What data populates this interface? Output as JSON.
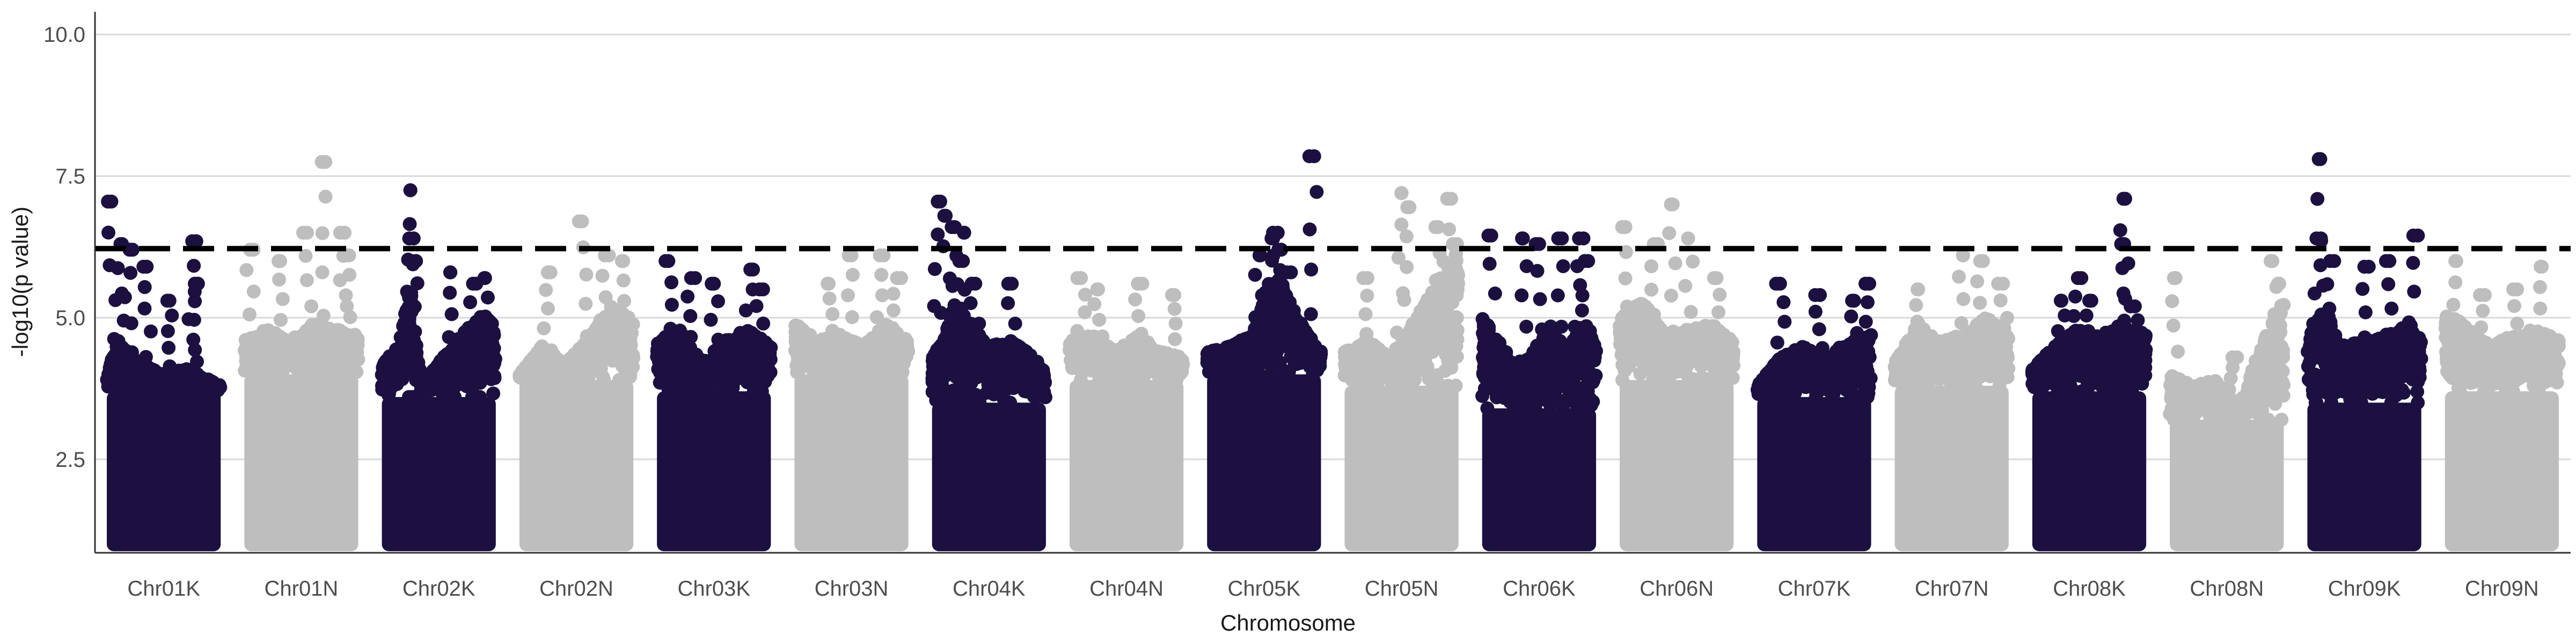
{
  "chart_data": {
    "type": "scatter",
    "title": "",
    "xlabel": "Chromosome",
    "ylabel": "-log10(p value)",
    "ylim": [
      0.85,
      10.4
    ],
    "yticks": [
      2.5,
      5.0,
      7.5,
      10.0
    ],
    "ytick_labels": [
      "2.5",
      "5.0",
      "7.5",
      "10.0"
    ],
    "grid": "horizontal major lines",
    "legend": "none",
    "threshold": {
      "value": 6.22,
      "style": "dashed",
      "color": "#000000"
    },
    "colors": {
      "odd": "#1c1040",
      "even": "#bebebe",
      "grid": "#d9d9d9",
      "axis": "#333333",
      "text": "#4d4d4d"
    },
    "point_floor": 1.0,
    "categories": [
      "Chr01K",
      "Chr01N",
      "Chr02K",
      "Chr02N",
      "Chr03K",
      "Chr03N",
      "Chr04K",
      "Chr04N",
      "Chr05K",
      "Chr05N",
      "Chr06K",
      "Chr06N",
      "Chr07K",
      "Chr07N",
      "Chr08K",
      "Chr08N",
      "Chr09K",
      "Chr09N"
    ],
    "series": [
      {
        "name": "Chr01K",
        "body_top": 3.7,
        "profile": [
          [
            0.0,
            4.0
          ],
          [
            0.1,
            4.6
          ],
          [
            0.3,
            4.2
          ],
          [
            0.5,
            4.0
          ],
          [
            0.7,
            4.1
          ],
          [
            0.9,
            3.9
          ],
          [
            1.0,
            3.8
          ]
        ],
        "peaks": [
          [
            0.04,
            7.05
          ],
          [
            0.12,
            6.3
          ],
          [
            0.2,
            6.2
          ],
          [
            0.35,
            5.9
          ],
          [
            0.75,
            6.35
          ],
          [
            0.8,
            5.6
          ],
          [
            0.55,
            5.3
          ]
        ]
      },
      {
        "name": "Chr01N",
        "body_top": 4.0,
        "profile": [
          [
            0.0,
            4.6
          ],
          [
            0.2,
            4.8
          ],
          [
            0.4,
            4.6
          ],
          [
            0.6,
            4.9
          ],
          [
            0.8,
            4.8
          ],
          [
            1.0,
            4.7
          ]
        ],
        "peaks": [
          [
            0.05,
            6.2
          ],
          [
            0.3,
            6.0
          ],
          [
            0.55,
            6.5
          ],
          [
            0.68,
            7.75
          ],
          [
            0.88,
            6.5
          ],
          [
            0.92,
            6.1
          ]
        ]
      },
      {
        "name": "Chr02K",
        "body_top": 3.6,
        "profile": [
          [
            0.0,
            4.2
          ],
          [
            0.15,
            4.5
          ],
          [
            0.25,
            5.6
          ],
          [
            0.35,
            3.8
          ],
          [
            0.5,
            4.2
          ],
          [
            0.7,
            4.7
          ],
          [
            0.9,
            5.1
          ],
          [
            1.0,
            4.8
          ]
        ],
        "peaks": [
          [
            0.25,
            7.25
          ],
          [
            0.24,
            6.4
          ],
          [
            0.3,
            6.0
          ],
          [
            0.6,
            5.8
          ],
          [
            0.8,
            5.6
          ],
          [
            0.9,
            5.7
          ]
        ]
      },
      {
        "name": "Chr02N",
        "body_top": 3.9,
        "profile": [
          [
            0.0,
            4.0
          ],
          [
            0.2,
            4.5
          ],
          [
            0.4,
            4.2
          ],
          [
            0.6,
            4.6
          ],
          [
            0.8,
            5.2
          ],
          [
            1.0,
            5.0
          ]
        ],
        "peaks": [
          [
            0.25,
            5.8
          ],
          [
            0.55,
            6.7
          ],
          [
            0.75,
            6.1
          ],
          [
            0.9,
            6.0
          ]
        ]
      },
      {
        "name": "Chr03K",
        "body_top": 3.7,
        "profile": [
          [
            0.0,
            4.6
          ],
          [
            0.2,
            4.8
          ],
          [
            0.4,
            4.2
          ],
          [
            0.6,
            4.6
          ],
          [
            0.8,
            4.8
          ],
          [
            1.0,
            4.5
          ]
        ],
        "peaks": [
          [
            0.1,
            6.0
          ],
          [
            0.3,
            5.7
          ],
          [
            0.5,
            5.6
          ],
          [
            0.82,
            5.85
          ],
          [
            0.9,
            5.5
          ]
        ]
      },
      {
        "name": "Chr03N",
        "body_top": 4.0,
        "profile": [
          [
            0.0,
            4.9
          ],
          [
            0.2,
            4.6
          ],
          [
            0.4,
            4.7
          ],
          [
            0.6,
            4.5
          ],
          [
            0.8,
            4.9
          ],
          [
            1.0,
            4.6
          ]
        ],
        "peaks": [
          [
            0.3,
            5.6
          ],
          [
            0.5,
            6.1
          ],
          [
            0.75,
            6.1
          ],
          [
            0.9,
            5.7
          ]
        ]
      },
      {
        "name": "Chr04K",
        "body_top": 3.5,
        "profile": [
          [
            0.0,
            4.3
          ],
          [
            0.1,
            4.6
          ],
          [
            0.2,
            5.3
          ],
          [
            0.3,
            5.0
          ],
          [
            0.5,
            4.5
          ],
          [
            0.7,
            4.6
          ],
          [
            0.9,
            4.3
          ],
          [
            1.0,
            4.0
          ]
        ],
        "peaks": [
          [
            0.05,
            7.05
          ],
          [
            0.12,
            6.8
          ],
          [
            0.2,
            6.6
          ],
          [
            0.28,
            6.5
          ],
          [
            0.24,
            6.0
          ],
          [
            0.38,
            5.6
          ],
          [
            0.7,
            5.6
          ]
        ]
      },
      {
        "name": "Chr04N",
        "body_top": 3.9,
        "profile": [
          [
            0.0,
            4.6
          ],
          [
            0.2,
            4.7
          ],
          [
            0.4,
            4.4
          ],
          [
            0.6,
            4.7
          ],
          [
            0.8,
            4.4
          ],
          [
            1.0,
            4.3
          ]
        ],
        "peaks": [
          [
            0.1,
            5.7
          ],
          [
            0.25,
            5.5
          ],
          [
            0.6,
            5.6
          ],
          [
            0.9,
            5.4
          ]
        ]
      },
      {
        "name": "Chr05K",
        "body_top": 4.0,
        "profile": [
          [
            0.0,
            4.4
          ],
          [
            0.2,
            4.5
          ],
          [
            0.4,
            4.7
          ],
          [
            0.5,
            5.4
          ],
          [
            0.6,
            5.9
          ],
          [
            0.7,
            5.4
          ],
          [
            0.85,
            4.8
          ],
          [
            1.0,
            4.4
          ]
        ],
        "peaks": [
          [
            0.58,
            6.4
          ],
          [
            0.62,
            6.5
          ],
          [
            0.65,
            6.2
          ],
          [
            0.46,
            6.1
          ],
          [
            0.94,
            7.85
          ],
          [
            0.7,
            5.8
          ]
        ]
      },
      {
        "name": "Chr05N",
        "body_top": 3.8,
        "profile": [
          [
            0.0,
            4.4
          ],
          [
            0.2,
            4.6
          ],
          [
            0.4,
            4.3
          ],
          [
            0.6,
            4.9
          ],
          [
            0.8,
            5.6
          ],
          [
            1.0,
            6.2
          ]
        ],
        "peaks": [
          [
            0.2,
            5.7
          ],
          [
            0.5,
            7.2
          ],
          [
            0.55,
            6.95
          ],
          [
            0.82,
            6.6
          ],
          [
            0.9,
            7.1
          ],
          [
            0.95,
            6.3
          ]
        ]
      },
      {
        "name": "Chr06K",
        "body_top": 3.4,
        "profile": [
          [
            0.0,
            5.0
          ],
          [
            0.15,
            4.6
          ],
          [
            0.3,
            4.1
          ],
          [
            0.45,
            4.4
          ],
          [
            0.6,
            4.9
          ],
          [
            0.75,
            4.4
          ],
          [
            0.9,
            5.0
          ],
          [
            1.0,
            4.5
          ]
        ],
        "peaks": [
          [
            0.08,
            6.45
          ],
          [
            0.35,
            6.4
          ],
          [
            0.5,
            6.3
          ],
          [
            0.7,
            6.4
          ],
          [
            0.85,
            6.4
          ],
          [
            0.9,
            6.0
          ]
        ]
      },
      {
        "name": "Chr06N",
        "body_top": 3.9,
        "profile": [
          [
            0.0,
            5.0
          ],
          [
            0.2,
            5.3
          ],
          [
            0.4,
            4.7
          ],
          [
            0.6,
            4.8
          ],
          [
            0.8,
            4.9
          ],
          [
            1.0,
            4.6
          ]
        ],
        "peaks": [
          [
            0.05,
            6.6
          ],
          [
            0.3,
            6.3
          ],
          [
            0.45,
            7.0
          ],
          [
            0.6,
            6.4
          ],
          [
            0.85,
            5.7
          ]
        ]
      },
      {
        "name": "Chr07K",
        "body_top": 3.6,
        "profile": [
          [
            0.0,
            3.8
          ],
          [
            0.2,
            4.3
          ],
          [
            0.4,
            4.5
          ],
          [
            0.6,
            4.3
          ],
          [
            0.8,
            4.6
          ],
          [
            1.0,
            4.7
          ]
        ],
        "peaks": [
          [
            0.2,
            5.6
          ],
          [
            0.55,
            5.4
          ],
          [
            0.85,
            5.3
          ],
          [
            0.95,
            5.6
          ]
        ]
      },
      {
        "name": "Chr07N",
        "body_top": 3.8,
        "profile": [
          [
            0.0,
            4.2
          ],
          [
            0.2,
            4.9
          ],
          [
            0.4,
            4.6
          ],
          [
            0.6,
            4.7
          ],
          [
            0.8,
            5.0
          ],
          [
            1.0,
            4.8
          ]
        ],
        "peaks": [
          [
            0.2,
            5.5
          ],
          [
            0.6,
            6.1
          ],
          [
            0.75,
            6.0
          ],
          [
            0.95,
            5.6
          ]
        ]
      },
      {
        "name": "Chr08K",
        "body_top": 3.7,
        "profile": [
          [
            0.0,
            4.1
          ],
          [
            0.2,
            4.5
          ],
          [
            0.4,
            4.8
          ],
          [
            0.6,
            4.7
          ],
          [
            0.8,
            4.9
          ],
          [
            1.0,
            4.7
          ]
        ],
        "peaks": [
          [
            0.25,
            5.3
          ],
          [
            0.4,
            5.7
          ],
          [
            0.5,
            5.3
          ],
          [
            0.78,
            6.3
          ],
          [
            0.8,
            7.1
          ],
          [
            0.9,
            5.2
          ]
        ]
      },
      {
        "name": "Chr08N",
        "body_top": 3.2,
        "profile": [
          [
            0.0,
            4.0
          ],
          [
            0.2,
            3.8
          ],
          [
            0.4,
            3.9
          ],
          [
            0.6,
            3.4
          ],
          [
            0.8,
            4.5
          ],
          [
            1.0,
            5.3
          ]
        ],
        "peaks": [
          [
            0.05,
            5.7
          ],
          [
            0.55,
            4.3
          ],
          [
            0.9,
            6.0
          ],
          [
            0.95,
            5.6
          ]
        ]
      },
      {
        "name": "Chr09K",
        "body_top": 3.5,
        "profile": [
          [
            0.0,
            4.6
          ],
          [
            0.15,
            5.2
          ],
          [
            0.3,
            4.5
          ],
          [
            0.5,
            4.6
          ],
          [
            0.7,
            4.7
          ],
          [
            0.9,
            4.9
          ],
          [
            1.0,
            4.6
          ]
        ],
        "peaks": [
          [
            0.08,
            6.4
          ],
          [
            0.1,
            7.8
          ],
          [
            0.2,
            6.0
          ],
          [
            0.5,
            5.9
          ],
          [
            0.72,
            6.0
          ],
          [
            0.93,
            6.45
          ]
        ]
      },
      {
        "name": "Chr09N",
        "body_top": 3.7,
        "profile": [
          [
            0.0,
            5.2
          ],
          [
            0.2,
            4.8
          ],
          [
            0.4,
            4.5
          ],
          [
            0.6,
            4.7
          ],
          [
            0.8,
            4.8
          ],
          [
            1.0,
            4.6
          ]
        ],
        "peaks": [
          [
            0.1,
            6.0
          ],
          [
            0.35,
            5.4
          ],
          [
            0.6,
            5.5
          ],
          [
            0.85,
            5.9
          ]
        ]
      }
    ]
  }
}
